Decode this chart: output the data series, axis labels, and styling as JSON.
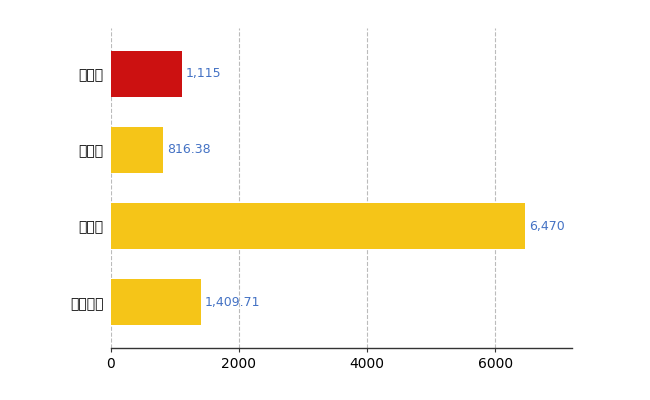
{
  "categories": [
    "黒石市",
    "県平均",
    "県最大",
    "全国平均"
  ],
  "values": [
    1115,
    816.38,
    6470,
    1409.71
  ],
  "labels": [
    "1,115",
    "816.38",
    "6,470",
    "1,409.71"
  ],
  "bar_colors": [
    "#cc1111",
    "#f5c518",
    "#f5c518",
    "#f5c518"
  ],
  "label_color": "#4472c4",
  "xlim": [
    0,
    7200
  ],
  "xticks": [
    0,
    2000,
    4000,
    6000
  ],
  "background_color": "#ffffff",
  "grid_color": "#bbbbbb",
  "label_fontsize": 9,
  "tick_fontsize": 9,
  "bar_height": 0.6,
  "figsize": [
    6.5,
    4.0
  ],
  "dpi": 100
}
